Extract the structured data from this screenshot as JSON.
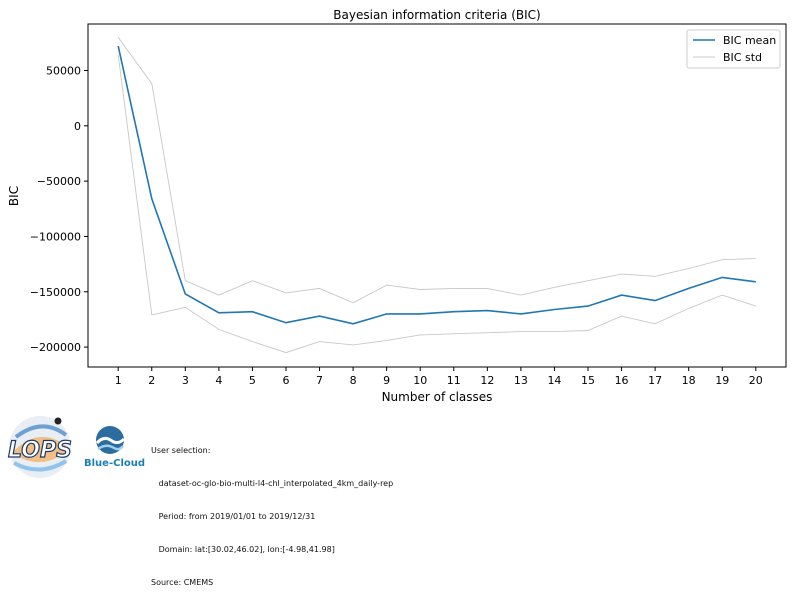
{
  "chart_data": {
    "type": "line",
    "title": "Bayesian information criteria (BIC)",
    "xlabel": "Number of classes",
    "ylabel": "BIC",
    "x": [
      1,
      2,
      3,
      4,
      5,
      6,
      7,
      8,
      9,
      10,
      11,
      12,
      13,
      14,
      15,
      16,
      17,
      18,
      19,
      20
    ],
    "xlim": [
      0.1,
      20.9
    ],
    "ylim": [
      -218000,
      92000
    ],
    "yticks": [
      50000,
      0,
      -50000,
      -100000,
      -150000,
      -200000
    ],
    "ytick_labels": [
      "50000",
      "0",
      "−50000",
      "−100000",
      "−150000",
      "−200000"
    ],
    "series": [
      {
        "name": "BIC mean",
        "color": "#1f77b4",
        "role": "mean",
        "values": [
          72000,
          -66000,
          -152000,
          -169000,
          -168000,
          -178000,
          -172000,
          -179000,
          -170000,
          -170000,
          -168000,
          -167000,
          -170000,
          -166000,
          -163000,
          -153000,
          -158000,
          -147000,
          -137000,
          -141000
        ]
      },
      {
        "name": "BIC std",
        "color": "#c8c8c8",
        "role": "std-upper",
        "values": [
          80000,
          38000,
          -140000,
          -153000,
          -140000,
          -151000,
          -147000,
          -160000,
          -144000,
          -148000,
          -147000,
          -147000,
          -153000,
          -146000,
          -140000,
          -134000,
          -136000,
          -129000,
          -121000,
          -120000
        ]
      },
      {
        "role": "std-lower",
        "color": "#c8c8c8",
        "values": [
          64000,
          -171000,
          -164000,
          -184000,
          -195000,
          -205000,
          -195000,
          -198000,
          -194000,
          -189000,
          -188000,
          -187000,
          -186000,
          -186000,
          -185000,
          -172000,
          -179000,
          -165000,
          -153000,
          -163000
        ]
      }
    ],
    "legend": {
      "position": "top-right",
      "entries": [
        "BIC mean",
        "BIC std"
      ]
    },
    "grid": false
  },
  "footer": {
    "lops_logo_text": "LOPS",
    "bluecloud_text": "Blue-Cloud",
    "info_lines": [
      "User selection:",
      "   dataset-oc-glo-bio-multi-l4-chl_interpolated_4km_daily-rep",
      "   Period: from 2019/01/01 to 2019/12/31",
      "   Domain: lat:[30.02,46.02], lon:[-4.98,41.98]",
      "Source: CMEMS"
    ]
  }
}
